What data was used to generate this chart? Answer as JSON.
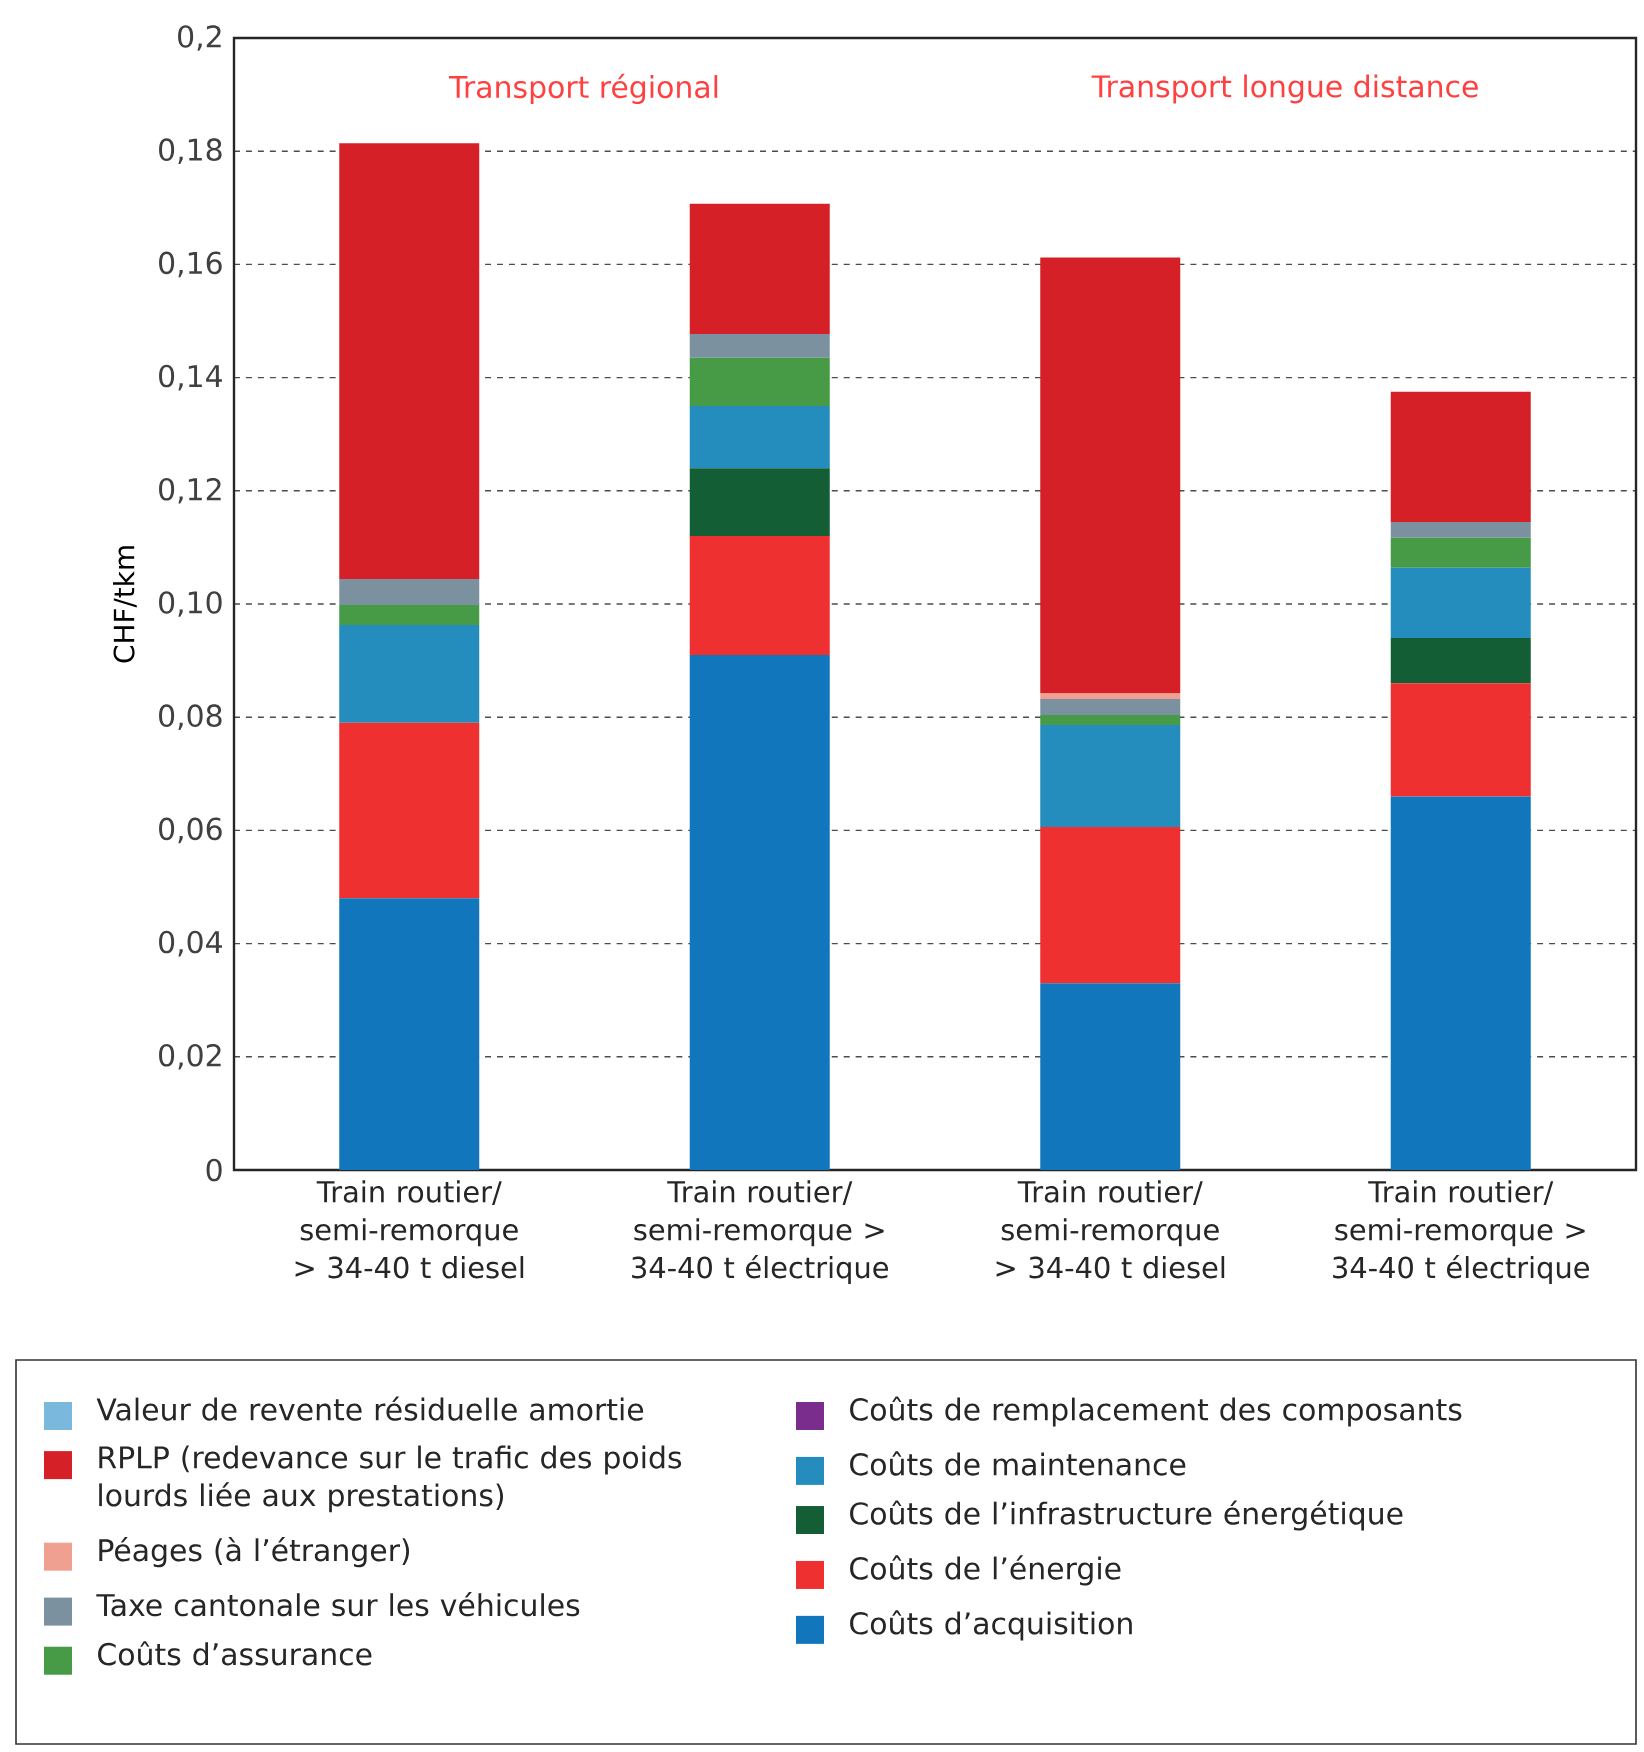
{
  "chart_data": {
    "type": "bar",
    "stacked": true,
    "ylabel": "CHF/tkm",
    "categories": [
      "Train routier/ semi-remorque > 34-40 t diesel",
      "Train routier/ semi-remorque > 34-40 t électrique",
      "Train routier/ semi-remorque > 34-40 t diesel",
      "Train routier/ semi-remorque > 34-40 t électrique"
    ],
    "series": [
      {
        "name": "Coûts d’acquisition",
        "color": "#1276bc",
        "values": [
          0.048,
          0.091,
          0.033,
          0.066
        ]
      },
      {
        "name": "Coûts de l’énergie",
        "color": "#ee3030",
        "values": [
          0.031,
          0.021,
          0.0276,
          0.02
        ]
      },
      {
        "name": "Coûts de l’infrastructure énergétique",
        "color": "#135e35",
        "values": [
          0,
          0.012,
          0,
          0.008
        ]
      },
      {
        "name": "Coûts de maintenance",
        "color": "#258dbd",
        "values": [
          0.0173,
          0.011,
          0.018,
          0.0124
        ]
      },
      {
        "name": "Coûts de remplacement des composants",
        "color": "#7b2d8e",
        "values": [
          0,
          0,
          0,
          0
        ]
      },
      {
        "name": "Coûts d’assurance",
        "color": "#479a46",
        "values": [
          0.0035,
          0.0085,
          0.0018,
          0.0053
        ]
      },
      {
        "name": "Taxe cantonale sur les véhicules",
        "color": "#7b91a0",
        "values": [
          0.0046,
          0.0042,
          0.0028,
          0.0028
        ]
      },
      {
        "name": "Péages (à l’étranger)",
        "color": "#f0a090",
        "values": [
          0,
          0,
          0.001,
          0
        ]
      },
      {
        "name": "RPLP (redevance sur le trafic des poids lourds liée aux prestations)",
        "color": "#d62027",
        "values": [
          0.077,
          0.023,
          0.077,
          0.023
        ]
      },
      {
        "name": "Valeur de revente résiduelle amortie",
        "color": "#7ab8de",
        "values": [
          0,
          0,
          0,
          0
        ]
      }
    ],
    "ylim": [
      0,
      0.2
    ],
    "yticks": [
      0,
      {
        "value": 0.02,
        "label": "0,02"
      },
      {
        "value": 0.04,
        "label": "0,04"
      },
      {
        "value": 0.06,
        "label": "0,06"
      },
      {
        "value": 0.08,
        "label": "0,08"
      },
      {
        "value": 0.1,
        "label": "0,10"
      },
      {
        "value": 0.12,
        "label": "0,12"
      },
      {
        "value": 0.14,
        "label": "0,14"
      },
      {
        "value": 0.16,
        "label": "0,16"
      },
      {
        "value": 0.18,
        "label": "0,18"
      },
      {
        "value": 0.2,
        "label": "0,2"
      }
    ],
    "grid": "y",
    "legend": "bottom",
    "annotations": [
      "Transport régional",
      "Transport longue distance"
    ]
  }
}
